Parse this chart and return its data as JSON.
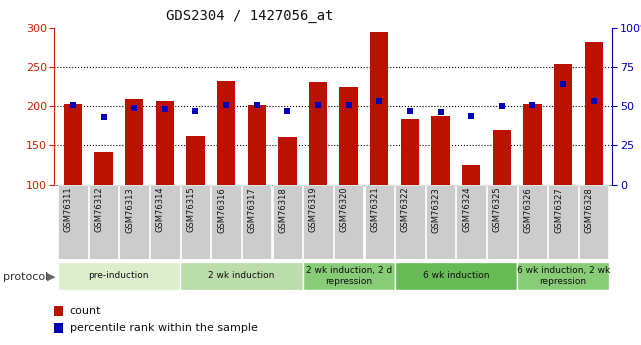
{
  "title": "GDS2304 / 1427056_at",
  "samples": [
    "GSM76311",
    "GSM76312",
    "GSM76313",
    "GSM76314",
    "GSM76315",
    "GSM76316",
    "GSM76317",
    "GSM76318",
    "GSM76319",
    "GSM76320",
    "GSM76321",
    "GSM76322",
    "GSM76323",
    "GSM76324",
    "GSM76325",
    "GSM76326",
    "GSM76327",
    "GSM76328"
  ],
  "counts": [
    203,
    141,
    209,
    207,
    162,
    232,
    201,
    161,
    231,
    224,
    295,
    184,
    188,
    125,
    170,
    203,
    253,
    282
  ],
  "percentiles": [
    51,
    43,
    49,
    48,
    47,
    51,
    51,
    47,
    51,
    51,
    53,
    47,
    46,
    44,
    50,
    51,
    64,
    53
  ],
  "count_base": 100,
  "ylim_left": [
    100,
    300
  ],
  "ylim_right": [
    0,
    100
  ],
  "yticks_left": [
    100,
    150,
    200,
    250,
    300
  ],
  "yticks_right": [
    0,
    25,
    50,
    75,
    100
  ],
  "bar_color": "#bb1100",
  "dot_color": "#0000bb",
  "protocol_groups": [
    {
      "label": "pre-induction",
      "start": 0,
      "end": 3,
      "color": "#ddeecc"
    },
    {
      "label": "2 wk induction",
      "start": 4,
      "end": 7,
      "color": "#bbddaa"
    },
    {
      "label": "2 wk induction, 2 d\nrepression",
      "start": 8,
      "end": 10,
      "color": "#88cc77"
    },
    {
      "label": "6 wk induction",
      "start": 11,
      "end": 14,
      "color": "#66bb55"
    },
    {
      "label": "6 wk induction, 2 wk\nrepression",
      "start": 15,
      "end": 17,
      "color": "#88cc77"
    }
  ],
  "left_axis_color": "#cc2200",
  "right_axis_color": "#0000bb",
  "protocol_label": "protocol",
  "legend_count_label": "count",
  "legend_pct_label": "percentile rank within the sample",
  "background_color": "#ffffff",
  "tick_label_bg": "#cccccc",
  "grid_dotted_color": "#000000"
}
